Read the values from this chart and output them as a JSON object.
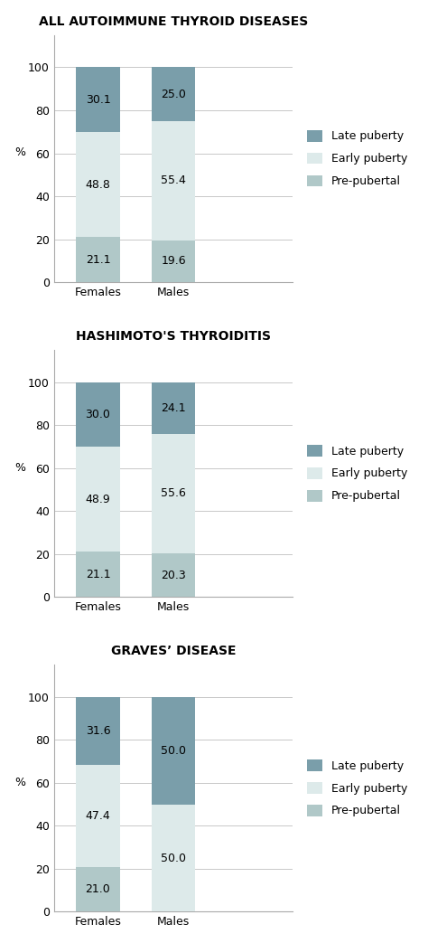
{
  "charts": [
    {
      "title": "ALL AUTOIMMUNE THYROID DISEASES",
      "females": [
        21.1,
        48.8,
        30.1
      ],
      "males": [
        19.6,
        55.4,
        25.0
      ]
    },
    {
      "title": "HASHIMOTO'S THYROIDITIS",
      "females": [
        21.1,
        48.9,
        30.0
      ],
      "males": [
        20.3,
        55.6,
        24.1
      ]
    },
    {
      "title": "GRAVES’ DISEASE",
      "females": [
        21.0,
        47.4,
        31.6
      ],
      "males": [
        0.0,
        50.0,
        50.0
      ]
    }
  ],
  "categories": [
    "Females",
    "Males"
  ],
  "legend_labels": [
    "Late puberty",
    "Early puberty",
    "Pre-pubertal"
  ],
  "ylabel": "%",
  "ylim": [
    0,
    115
  ],
  "yticks": [
    0,
    20,
    40,
    60,
    80,
    100
  ],
  "figsize": [
    4.74,
    10.43
  ],
  "dpi": 100,
  "background_color": "#ffffff",
  "grid_color": "#c8c8c8",
  "title_fontsize": 10,
  "label_fontsize": 9,
  "tick_fontsize": 9,
  "annotation_fontsize": 9,
  "legend_fontsize": 9
}
